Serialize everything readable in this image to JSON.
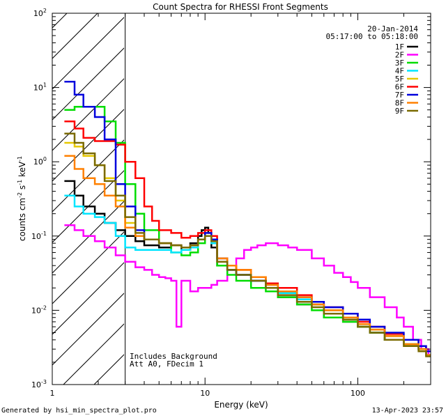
{
  "chart_data": {
    "type": "line",
    "title": "Count Spectra for RHESSI Front Segments",
    "date": "20-Jan-2014",
    "time_range": "05:17:00 to 05:18:00",
    "xlabel": "Energy (keV)",
    "ylabel_parts": [
      "counts cm",
      "-2",
      " s",
      "-1",
      " keV",
      "-1"
    ],
    "xscale": "log",
    "yscale": "log",
    "xlim": [
      1,
      300
    ],
    "ylim": [
      0.001,
      100
    ],
    "x_ticks": [
      {
        "v": 1,
        "label": "1"
      },
      {
        "v": 10,
        "label": "10"
      },
      {
        "v": 100,
        "label": "100"
      }
    ],
    "y_ticks": [
      {
        "v": 0.001,
        "base": "10",
        "exp": "-3"
      },
      {
        "v": 0.01,
        "base": "10",
        "exp": "-2"
      },
      {
        "v": 0.1,
        "base": "10",
        "exp": "-1"
      },
      {
        "v": 1,
        "base": "10",
        "exp": "0"
      },
      {
        "v": 10,
        "base": "10",
        "exp": "1"
      },
      {
        "v": 100,
        "base": "10",
        "exp": "2"
      }
    ],
    "hatched_region_max_keV": 3,
    "legend_position": "top-right",
    "annotations": [
      "Includes Background",
      "Att A0, FDecim 1"
    ],
    "series": [
      {
        "name": "1F",
        "color": "#000000",
        "x": [
          1.2,
          1.4,
          1.6,
          1.9,
          2.2,
          2.6,
          3,
          3.5,
          4,
          5,
          6,
          7,
          8,
          9,
          9.5,
          10,
          10.5,
          11,
          12,
          14,
          16,
          20,
          25,
          30,
          40,
          50,
          60,
          80,
          100,
          120,
          150,
          200,
          250,
          280
        ],
        "y": [
          0.55,
          0.35,
          0.25,
          0.2,
          0.15,
          0.12,
          0.1,
          0.085,
          0.075,
          0.07,
          0.075,
          0.065,
          0.08,
          0.1,
          0.12,
          0.13,
          0.11,
          0.07,
          0.04,
          0.035,
          0.03,
          0.025,
          0.02,
          0.015,
          0.012,
          0.012,
          0.008,
          0.007,
          0.006,
          0.005,
          0.004,
          0.0035,
          0.003,
          0.0025
        ]
      },
      {
        "name": "2F",
        "color": "#ff00ff",
        "x": [
          1.2,
          1.4,
          1.6,
          1.9,
          2.2,
          2.6,
          3,
          3.5,
          4,
          4.5,
          5,
          5.5,
          6,
          6.5,
          7,
          8,
          9,
          10,
          11,
          12,
          14,
          16,
          18,
          20,
          22,
          25,
          30,
          35,
          40,
          50,
          60,
          70,
          80,
          90,
          100,
          120,
          150,
          180,
          200,
          230,
          260,
          290
        ],
        "y": [
          0.14,
          0.12,
          0.1,
          0.085,
          0.07,
          0.055,
          0.045,
          0.038,
          0.035,
          0.03,
          0.028,
          0.027,
          0.025,
          0.006,
          0.025,
          0.018,
          0.02,
          0.02,
          0.022,
          0.025,
          0.035,
          0.05,
          0.065,
          0.07,
          0.075,
          0.08,
          0.075,
          0.07,
          0.065,
          0.05,
          0.04,
          0.032,
          0.028,
          0.024,
          0.02,
          0.015,
          0.011,
          0.008,
          0.006,
          0.004,
          0.003,
          0.0025
        ]
      },
      {
        "name": "3F",
        "color": "#00dd00",
        "x": [
          1.2,
          1.4,
          1.6,
          1.9,
          2.2,
          2.6,
          3,
          3.5,
          4,
          5,
          6,
          7,
          8,
          9,
          10,
          11,
          12,
          14,
          16,
          20,
          25,
          30,
          40,
          50,
          60,
          80,
          100,
          120,
          150,
          200,
          250,
          280
        ],
        "y": [
          5,
          5.5,
          5.5,
          5.5,
          3.5,
          1.8,
          0.5,
          0.2,
          0.12,
          0.08,
          0.06,
          0.055,
          0.06,
          0.08,
          0.1,
          0.08,
          0.04,
          0.03,
          0.025,
          0.02,
          0.018,
          0.015,
          0.012,
          0.01,
          0.008,
          0.007,
          0.006,
          0.005,
          0.004,
          0.0035,
          0.003,
          0.0025
        ]
      },
      {
        "name": "4F",
        "color": "#00e5ff",
        "x": [
          1.2,
          1.4,
          1.6,
          1.9,
          2.2,
          2.6,
          3,
          3.5,
          4,
          5,
          6,
          7,
          8,
          9,
          10,
          11,
          12,
          14,
          16,
          20,
          25,
          30,
          40,
          50,
          60,
          80,
          100,
          120,
          150,
          200,
          250,
          280
        ],
        "y": [
          0.35,
          0.25,
          0.2,
          0.18,
          0.15,
          0.1,
          0.07,
          0.065,
          0.065,
          0.065,
          0.06,
          0.065,
          0.07,
          0.09,
          0.1,
          0.08,
          0.045,
          0.035,
          0.03,
          0.025,
          0.02,
          0.017,
          0.014,
          0.012,
          0.01,
          0.008,
          0.0065,
          0.0055,
          0.0045,
          0.0035,
          0.003,
          0.0025
        ]
      },
      {
        "name": "5F",
        "color": "#e6c800",
        "x": [
          1.2,
          1.4,
          1.6,
          1.9,
          2.2,
          2.6,
          3,
          3.5,
          4,
          5,
          6,
          7,
          8,
          9,
          10,
          11,
          12,
          14,
          16,
          20,
          25,
          30,
          40,
          50,
          60,
          80,
          100,
          120,
          150,
          200,
          250,
          280
        ],
        "y": [
          1.8,
          1.6,
          1.2,
          0.9,
          0.6,
          0.3,
          0.15,
          0.1,
          0.09,
          0.08,
          0.075,
          0.07,
          0.075,
          0.09,
          0.11,
          0.09,
          0.05,
          0.04,
          0.035,
          0.028,
          0.022,
          0.018,
          0.015,
          0.012,
          0.01,
          0.008,
          0.0065,
          0.0055,
          0.0045,
          0.0035,
          0.003,
          0.0025
        ]
      },
      {
        "name": "6F",
        "color": "#ff0000",
        "x": [
          1.2,
          1.4,
          1.6,
          1.9,
          2.2,
          2.6,
          3,
          3.5,
          4,
          4.5,
          5,
          6,
          7,
          8,
          9,
          10,
          11,
          12,
          14,
          16,
          20,
          25,
          30,
          40,
          50,
          60,
          80,
          100,
          120,
          150,
          200,
          250,
          280
        ],
        "y": [
          3.5,
          2.8,
          2.1,
          1.9,
          1.9,
          1.7,
          1,
          0.6,
          0.25,
          0.16,
          0.12,
          0.11,
          0.095,
          0.1,
          0.11,
          0.12,
          0.1,
          0.05,
          0.04,
          0.035,
          0.028,
          0.023,
          0.02,
          0.016,
          0.013,
          0.011,
          0.009,
          0.007,
          0.006,
          0.0048,
          0.004,
          0.0033,
          0.0028
        ]
      },
      {
        "name": "7F",
        "color": "#0000dd",
        "x": [
          1.2,
          1.4,
          1.6,
          1.9,
          2.2,
          2.6,
          3,
          3.5,
          4,
          5,
          6,
          7,
          8,
          9,
          10,
          11,
          12,
          14,
          16,
          20,
          25,
          30,
          40,
          50,
          60,
          80,
          100,
          120,
          150,
          200,
          250,
          280
        ],
        "y": [
          12,
          8,
          5.5,
          4,
          2,
          0.5,
          0.25,
          0.12,
          0.09,
          0.08,
          0.075,
          0.07,
          0.075,
          0.09,
          0.11,
          0.09,
          0.05,
          0.035,
          0.03,
          0.025,
          0.022,
          0.018,
          0.015,
          0.013,
          0.011,
          0.009,
          0.0075,
          0.006,
          0.005,
          0.004,
          0.0033,
          0.0028
        ]
      },
      {
        "name": "8F",
        "color": "#ff8000",
        "x": [
          1.2,
          1.4,
          1.6,
          1.9,
          2.2,
          2.6,
          3,
          3.5,
          4,
          5,
          6,
          7,
          8,
          9,
          10,
          11,
          12,
          14,
          16,
          20,
          25,
          30,
          40,
          50,
          60,
          80,
          100,
          120,
          150,
          200,
          250,
          280
        ],
        "y": [
          1.2,
          0.8,
          0.6,
          0.5,
          0.35,
          0.25,
          0.13,
          0.1,
          0.09,
          0.08,
          0.075,
          0.07,
          0.075,
          0.09,
          0.1,
          0.085,
          0.05,
          0.04,
          0.035,
          0.028,
          0.022,
          0.018,
          0.015,
          0.012,
          0.01,
          0.008,
          0.0065,
          0.0055,
          0.0045,
          0.0035,
          0.003,
          0.0025
        ]
      },
      {
        "name": "9F",
        "color": "#7a6a00",
        "x": [
          1.2,
          1.4,
          1.6,
          1.9,
          2.2,
          2.6,
          3,
          3.5,
          4,
          5,
          6,
          7,
          8,
          9,
          10,
          11,
          12,
          14,
          16,
          20,
          25,
          30,
          40,
          50,
          60,
          80,
          100,
          120,
          150,
          200,
          250,
          280
        ],
        "y": [
          2.4,
          1.8,
          1.3,
          0.9,
          0.55,
          0.35,
          0.18,
          0.11,
          0.09,
          0.08,
          0.075,
          0.07,
          0.075,
          0.09,
          0.1,
          0.085,
          0.045,
          0.035,
          0.03,
          0.025,
          0.02,
          0.016,
          0.013,
          0.011,
          0.009,
          0.0075,
          0.006,
          0.005,
          0.004,
          0.0033,
          0.0028,
          0.0024
        ]
      }
    ]
  },
  "footer": {
    "left": "Generated by hsi_min_spectra_plot.pro",
    "right": "13-Apr-2023 23:57"
  }
}
